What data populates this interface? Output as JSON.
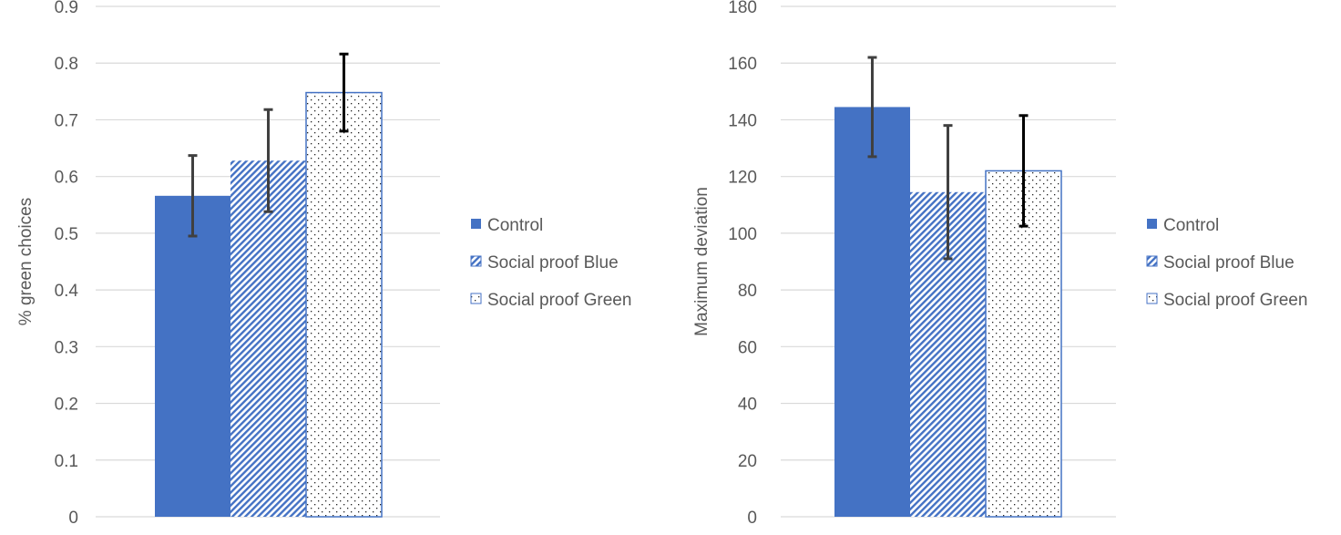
{
  "chart_data": [
    {
      "type": "bar",
      "title": "",
      "xlabel": "",
      "ylabel": "% green choices",
      "ylim": [
        0,
        0.9
      ],
      "yticks": [
        "0",
        "0.1",
        "0.2",
        "0.3",
        "0.4",
        "0.5",
        "0.6",
        "0.7",
        "0.8",
        "0.9"
      ],
      "grid": true,
      "legend_position": "right",
      "series": [
        {
          "name": "Control",
          "value": 0.566,
          "error": 0.071,
          "fill": "solid",
          "color": "#4472C4"
        },
        {
          "name": "Social proof Blue",
          "value": 0.628,
          "error": 0.09,
          "fill": "diagonal-hatch",
          "color": "#4472C4"
        },
        {
          "name": "Social proof Green",
          "value": 0.748,
          "error": 0.068,
          "fill": "dots",
          "color": "#4472C4"
        }
      ]
    },
    {
      "type": "bar",
      "title": "",
      "xlabel": "",
      "ylabel": "Maximum deviation",
      "ylim": [
        0,
        180
      ],
      "yticks": [
        "0",
        "20",
        "40",
        "60",
        "80",
        "100",
        "120",
        "140",
        "160",
        "180"
      ],
      "grid": true,
      "legend_position": "right",
      "series": [
        {
          "name": "Control",
          "value": 144.5,
          "error": 17.5,
          "fill": "solid",
          "color": "#4472C4"
        },
        {
          "name": "Social proof Blue",
          "value": 114.5,
          "error": 23.5,
          "fill": "diagonal-hatch",
          "color": "#4472C4"
        },
        {
          "name": "Social proof Green",
          "value": 122,
          "error": 19.5,
          "fill": "dots",
          "color": "#4472C4"
        }
      ]
    }
  ],
  "colors": {
    "bar": "#4472C4",
    "grid": "#D9D9D9",
    "axis_text": "#595959",
    "error_bar": "#000000"
  }
}
